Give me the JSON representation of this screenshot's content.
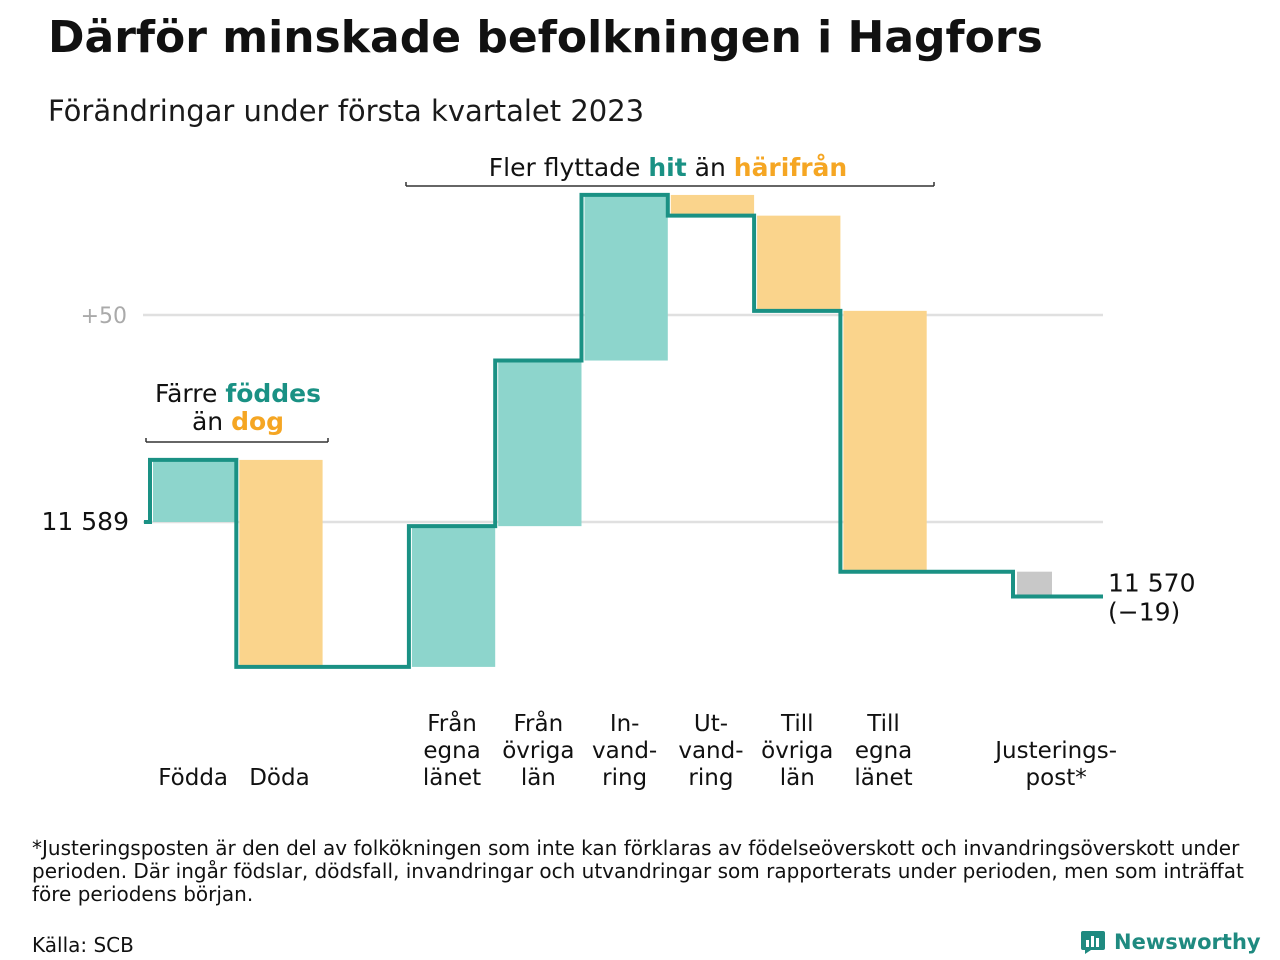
{
  "title": "Därför minskade befolkningen i Hagfors",
  "subtitle": "Förändringar under första kvartalet 2023",
  "footnote": "*Justeringsposten är den del av folkökningen som inte kan förklaras av födelseöverskott och invandringsöverskott under perioden. Där ingår födslar, dödsfall, invandringar och utvandringar som rapporterats under perioden, men som inträffat före periodens början.",
  "source": "Källa: SCB",
  "brand": "Newsworthy",
  "colors": {
    "increase": "#8dd5cc",
    "decrease": "#fad48c",
    "adjustment": "#c8c8c8",
    "line": "#1a9184",
    "teal_text": "#1a9184",
    "orange_text": "#f5a623",
    "grid": "#e0e0e0"
  },
  "annotations": {
    "births_deaths": {
      "line1_a": "Färre ",
      "line1_b": "föddes",
      "line2_a": "än ",
      "line2_b": "dog"
    },
    "migration": {
      "a": "Fler flyttade ",
      "b": "hit",
      "c": " än ",
      "d": "härifrån"
    }
  },
  "chart_data": {
    "type": "waterfall",
    "start_value": 11589,
    "start_label": "11 589",
    "end_label_1": "11 570",
    "end_label_2": "(−19)",
    "y_tick_label": "+50",
    "y_tick_value": 50,
    "ylim": [
      -35,
      77
    ],
    "steps": [
      {
        "label_lines": [
          "Födda"
        ],
        "change": 15,
        "kind": "increase"
      },
      {
        "label_lines": [
          "Döda"
        ],
        "change": -50,
        "kind": "decrease"
      },
      {
        "label_lines": [],
        "change": 0,
        "kind": "gap"
      },
      {
        "label_lines": [
          "Från",
          "egna",
          "länet"
        ],
        "change": 34,
        "kind": "increase"
      },
      {
        "label_lines": [
          "Från",
          "övriga",
          "län"
        ],
        "change": 40,
        "kind": "increase"
      },
      {
        "label_lines": [
          "In-",
          "vand-",
          "ring"
        ],
        "change": 40,
        "kind": "increase"
      },
      {
        "label_lines": [
          "Ut-",
          "vand-",
          "ring"
        ],
        "change": -5,
        "kind": "decrease"
      },
      {
        "label_lines": [
          "Till",
          "övriga",
          "län"
        ],
        "change": -23,
        "kind": "decrease"
      },
      {
        "label_lines": [
          "Till",
          "egna",
          "länet"
        ],
        "change": -63,
        "kind": "decrease"
      },
      {
        "label_lines": [],
        "change": 0,
        "kind": "gap"
      },
      {
        "label_lines": [
          "Justerings-",
          "post*"
        ],
        "change": -6,
        "kind": "adjustment"
      }
    ]
  }
}
